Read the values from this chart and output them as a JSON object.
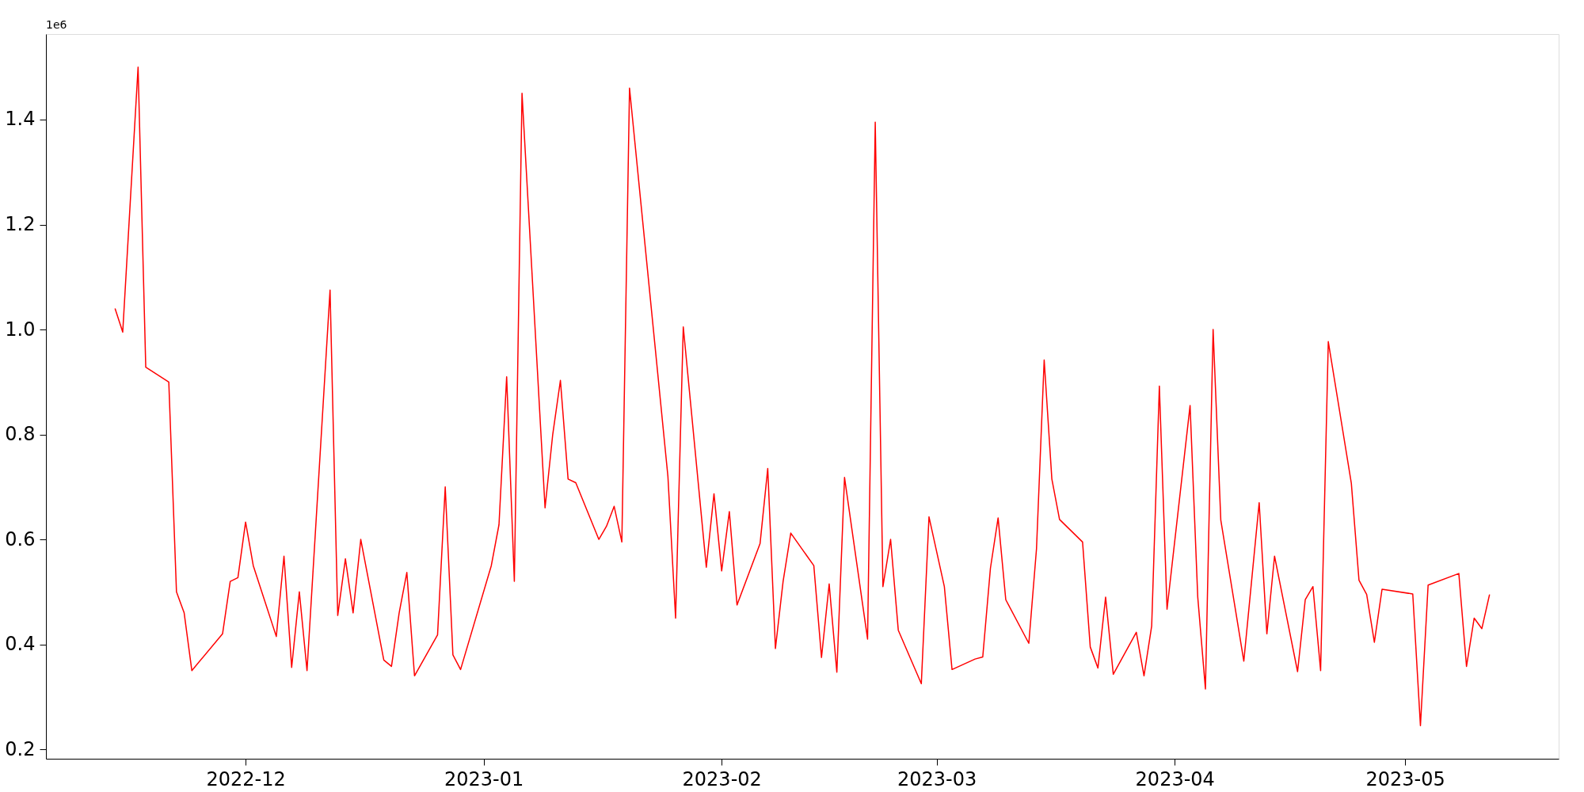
{
  "chart_data": {
    "type": "line",
    "x": [
      "2022-11-14",
      "2022-11-15",
      "2022-11-17",
      "2022-11-18",
      "2022-11-21",
      "2022-11-22",
      "2022-11-23",
      "2022-11-24",
      "2022-11-28",
      "2022-11-29",
      "2022-11-30",
      "2022-12-01",
      "2022-12-02",
      "2022-12-05",
      "2022-12-06",
      "2022-12-07",
      "2022-12-08",
      "2022-12-09",
      "2022-12-12",
      "2022-12-13",
      "2022-12-14",
      "2022-12-15",
      "2022-12-16",
      "2022-12-19",
      "2022-12-20",
      "2022-12-21",
      "2022-12-22",
      "2022-12-23",
      "2022-12-26",
      "2022-12-27",
      "2022-12-28",
      "2022-12-29",
      "2023-01-02",
      "2023-01-03",
      "2023-01-04",
      "2023-01-05",
      "2023-01-06",
      "2023-01-09",
      "2023-01-10",
      "2023-01-11",
      "2023-01-12",
      "2023-01-13",
      "2023-01-16",
      "2023-01-17",
      "2023-01-18",
      "2023-01-19",
      "2023-01-20",
      "2023-01-25",
      "2023-01-26",
      "2023-01-27",
      "2023-01-30",
      "2023-01-31",
      "2023-02-01",
      "2023-02-02",
      "2023-02-03",
      "2023-02-06",
      "2023-02-07",
      "2023-02-08",
      "2023-02-09",
      "2023-02-10",
      "2023-02-13",
      "2023-02-14",
      "2023-02-15",
      "2023-02-16",
      "2023-02-17",
      "2023-02-20",
      "2023-02-21",
      "2023-02-22",
      "2023-02-23",
      "2023-02-24",
      "2023-02-27",
      "2023-02-28",
      "2023-03-02",
      "2023-03-03",
      "2023-03-06",
      "2023-03-07",
      "2023-03-08",
      "2023-03-09",
      "2023-03-10",
      "2023-03-13",
      "2023-03-14",
      "2023-03-15",
      "2023-03-16",
      "2023-03-17",
      "2023-03-20",
      "2023-03-21",
      "2023-03-22",
      "2023-03-23",
      "2023-03-24",
      "2023-03-27",
      "2023-03-28",
      "2023-03-29",
      "2023-03-30",
      "2023-03-31",
      "2023-04-03",
      "2023-04-04",
      "2023-04-05",
      "2023-04-06",
      "2023-04-07",
      "2023-04-10",
      "2023-04-12",
      "2023-04-13",
      "2023-04-14",
      "2023-04-17",
      "2023-04-18",
      "2023-04-19",
      "2023-04-20",
      "2023-04-21",
      "2023-04-24",
      "2023-04-25",
      "2023-04-26",
      "2023-04-27",
      "2023-04-28",
      "2023-05-02",
      "2023-05-03",
      "2023-05-04",
      "2023-05-08",
      "2023-05-09",
      "2023-05-10",
      "2023-05-11",
      "2023-05-12"
    ],
    "series": [
      {
        "color": "#ff0000",
        "values": [
          1.04,
          0.995,
          1.5,
          0.928,
          0.9,
          0.5,
          0.46,
          0.35,
          0.42,
          0.52,
          0.527,
          0.633,
          0.55,
          0.415,
          0.568,
          0.356,
          0.5,
          0.35,
          1.075,
          0.455,
          0.563,
          0.46,
          0.6,
          0.37,
          0.358,
          0.46,
          0.537,
          0.34,
          0.418,
          0.7,
          0.38,
          0.352,
          0.55,
          0.628,
          0.91,
          0.52,
          1.45,
          0.66,
          0.8,
          0.903,
          0.715,
          0.708,
          0.6,
          0.625,
          0.663,
          0.595,
          1.46,
          0.72,
          0.45,
          1.005,
          0.547,
          0.687,
          0.54,
          0.653,
          0.475,
          0.592,
          0.735,
          0.392,
          0.52,
          0.612,
          0.55,
          0.375,
          0.515,
          0.347,
          0.718,
          0.41,
          1.395,
          0.51,
          0.6,
          0.427,
          0.325,
          0.643,
          0.51,
          0.352,
          0.372,
          0.376,
          0.545,
          0.641,
          0.485,
          0.402,
          0.582,
          0.942,
          0.715,
          0.638,
          0.595,
          0.395,
          0.355,
          0.49,
          0.343,
          0.423,
          0.34,
          0.435,
          0.892,
          0.467,
          0.855,
          0.49,
          0.315,
          1.0,
          0.637,
          0.368,
          0.67,
          0.42,
          0.568,
          0.348,
          0.485,
          0.51,
          0.35,
          0.977,
          0.707,
          0.522,
          0.495,
          0.404,
          0.505,
          0.496,
          0.245,
          0.513,
          0.535,
          0.358,
          0.45,
          0.43,
          0.495
        ]
      }
    ],
    "xlim": [
      "2022-11-05",
      "2023-05-21"
    ],
    "xticks": [
      "2022-12",
      "2023-01",
      "2023-02",
      "2023-03",
      "2023-04",
      "2023-05"
    ],
    "ylim": [
      0.182,
      1.563
    ],
    "yticks": [
      0.2,
      0.4,
      0.6,
      0.8,
      {
        "value": 1,
        "label": "1.0"
      },
      1.2,
      1.4
    ],
    "annotations": [
      "1e6"
    ],
    "grid": false
  }
}
